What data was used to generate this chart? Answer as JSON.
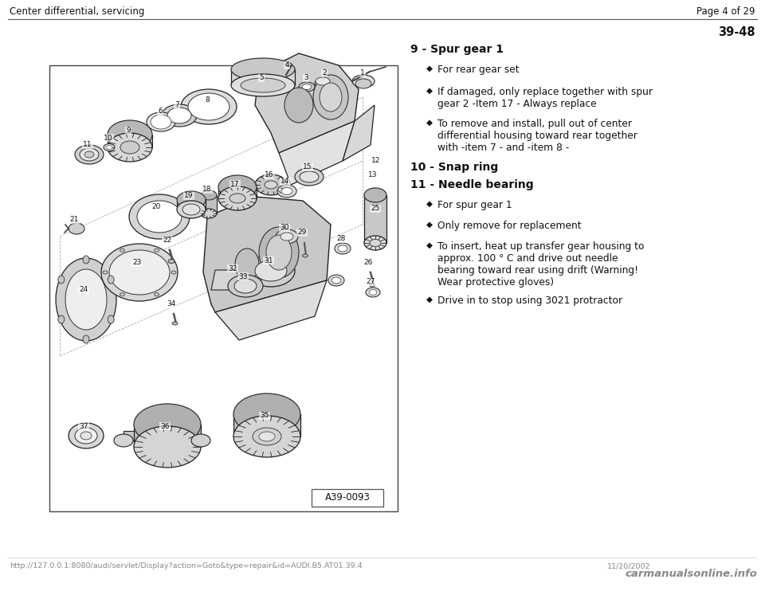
{
  "bg_color": "#ffffff",
  "header_left": "Center differential, servicing",
  "header_right": "Page 4 of 29",
  "page_num": "39-48",
  "footer_url": "http://127.0.0.1:8080/audi/servlet/Display?action=Goto&type=repair&id=AUDI.B5.AT01.39.4",
  "footer_date": "11/20/2002",
  "footer_logo": "carmanualsonline.info",
  "section_9_title": "9 - Spur gear 1",
  "section_9_b1": "For rear gear set",
  "section_9_b2": "If damaged, only replace together with spur\ngear 2 -Item 17 - Always replace",
  "section_9_b3": "To remove and install, pull out of center\ndifferential housing toward rear together\nwith -item 7 - and -item 8 -",
  "section_10_title": "10 - Snap ring",
  "section_11_title": "11 - Needle bearing",
  "section_11_b1": "For spur gear 1",
  "section_11_b2": "Only remove for replacement",
  "section_11_b3": "To insert, heat up transfer gear housing to\napprox. 100 ° C and drive out needle\nbearing toward rear using drift (Warning!\nWear protective gloves)",
  "section_11_b4": "Drive in to stop using 3021 protractor",
  "diagram_label": "A39-0093",
  "text_color": "#000000",
  "gray": "#777777"
}
